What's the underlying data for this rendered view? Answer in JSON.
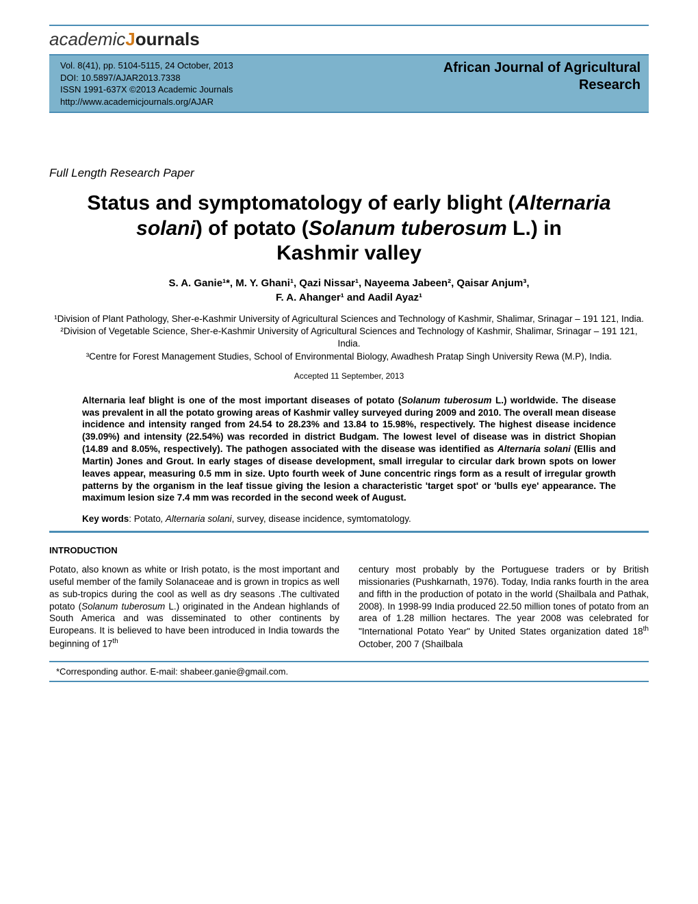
{
  "logo": {
    "part1": "academic",
    "part2": "Journals"
  },
  "banner": {
    "left": {
      "line1": "Vol. 8(41), pp. 5104-5115, 24 October, 2013",
      "line2": "DOI: 10.5897/AJAR2013.7338",
      "line3": "ISSN 1991-637X ©2013 Academic Journals",
      "line4": "http://www.academicjournals.org/AJAR"
    },
    "right": {
      "line1": "African Journal of Agricultural",
      "line2": "Research"
    }
  },
  "paper_type": "Full Length Research Paper",
  "title": {
    "l1a": "Status and symptomatology of early blight (",
    "l1b": "Alternaria",
    "l2a": "solani",
    "l2b": ") of potato (",
    "l2c": "Solanum tuberosum",
    "l2d": " L.) in",
    "l3": "Kashmir valley"
  },
  "authors": {
    "line1": "S. A. Ganie¹*, M. Y. Ghani¹, Qazi Nissar¹, Nayeema Jabeen², Qaisar Anjum³,",
    "line2": "F. A. Ahanger¹ and Aadil Ayaz¹"
  },
  "affiliations": {
    "a1": "¹Division of Plant Pathology, Sher-e-Kashmir University of Agricultural Sciences and Technology of Kashmir, Shalimar, Srinagar – 191 121, India.",
    "a2": "²Division of Vegetable Science, Sher-e-Kashmir University of Agricultural Sciences and Technology of Kashmir, Shalimar, Srinagar – 191 121, India.",
    "a3": "³Centre for Forest Management Studies, School of Environmental Biology, Awadhesh Pratap Singh University Rewa (M.P), India."
  },
  "accepted": "Accepted 11 September, 2013",
  "abstract": {
    "p1a": "Alternaria leaf blight is one of the most important diseases of potato (",
    "p1b": "Solanum tuberosum",
    "p1c": " L.) worldwide. The disease was prevalent in all the potato growing areas of Kashmir valley surveyed during 2009 and 2010. The overall mean disease incidence and intensity ranged from 24.54 to 28.23% and 13.84 to 15.98%, respectively. The highest disease incidence (39.09%) and intensity (22.54%) was recorded in district Budgam. The lowest level of disease was in district Shopian (14.89 and 8.05%, respectively). The pathogen associated with the disease was identified as ",
    "p1d": "Alternaria solani",
    "p1e": " (Ellis and Martin) Jones and Grout. In early stages of disease development, small irregular to circular dark brown spots on lower leaves appear, measuring 0.5 mm in size. Upto fourth week of June concentric  rings  form  as  a  result of irregular growth patterns by the organism in the leaf tissue giving the lesion a characteristic 'target spot' or 'bulls eye' appearance. The maximum lesion size 7.4 mm was recorded in the second week of August."
  },
  "keywords": {
    "label": "Key words",
    "a": ": Potato",
    "b": ", Alternaria solani",
    "c": ", survey, disease incidence, symtomatology."
  },
  "intro": {
    "heading": "INTRODUCTION",
    "col1a": "Potato, also known as white or Irish potato, is the most important and useful member of the family Solanaceae and is grown in tropics as well as sub-tropics during the cool as well as dry seasons .The cultivated potato (",
    "col1b": "Solanum tuberosum",
    "col1c": " L.) originated in the Andean highlands of South America and was disseminated to other continents by Europeans. It is believed to  have been introduced in  India  towards  the  beginning  of  17",
    "col1sup": "th",
    "col2": "century most probably by the Portuguese traders or by British missionaries (Pushkarnath, 1976). Today, India ranks fourth in the area and fifth in the production of potato in the world (Shailbala and Pathak, 2008). In 1998-99 India produced 22.50 million tones of potato from an area of 1.28 million hectares. The year 2008 was celebrated for \"International Potato Year\" by United States organization dated 18",
    "col2sup": "th",
    "col2b": " October,  200 7  (Shailbala"
  },
  "footer": "*Corresponding author. E-mail: shabeer.ganie@gmail.com.",
  "colors": {
    "banner_bg": "#7db3cc",
    "rule": "#4a8db5",
    "logo_orange": "#d17a1a"
  }
}
